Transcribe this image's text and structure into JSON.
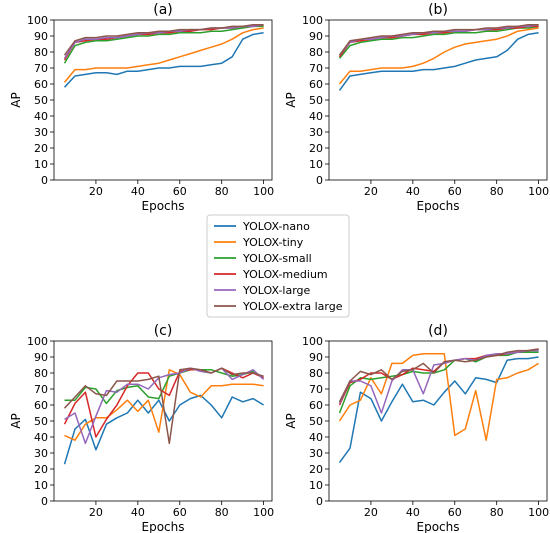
{
  "colors": {
    "YOLOX-nano": "#1f77b4",
    "YOLOX-tiny": "#ff7f0e",
    "YOLOX-small": "#2ca02c",
    "YOLOX-medium": "#d62728",
    "YOLOX-large": "#9467bd",
    "YOLOX-extra large": "#8c564b"
  },
  "legend": {
    "placement": "center",
    "entries": [
      "YOLOX-nano",
      "YOLOX-tiny",
      "YOLOX-small",
      "YOLOX-medium",
      "YOLOX-large",
      "YOLOX-extra large"
    ]
  },
  "chart_data": [
    {
      "type": "line",
      "title": "(a)",
      "xlabel": "Epochs",
      "ylabel": "AP",
      "xlim": [
        0,
        104
      ],
      "ylim": [
        0,
        100
      ],
      "xticks": [
        20,
        40,
        60,
        80,
        100
      ],
      "yticks": [
        0,
        10,
        20,
        30,
        40,
        50,
        60,
        70,
        80,
        90,
        100
      ],
      "x": [
        5,
        10,
        15,
        20,
        25,
        30,
        35,
        40,
        45,
        50,
        55,
        60,
        65,
        70,
        75,
        80,
        85,
        90,
        95,
        100
      ],
      "series": [
        {
          "name": "YOLOX-nano",
          "values": [
            58,
            65,
            66,
            67,
            67,
            66,
            68,
            68,
            69,
            70,
            70,
            71,
            71,
            71,
            72,
            73,
            77,
            88,
            91,
            92
          ]
        },
        {
          "name": "YOLOX-tiny",
          "values": [
            61,
            69,
            69,
            70,
            70,
            70,
            70,
            71,
            72,
            73,
            75,
            77,
            79,
            81,
            83,
            85,
            88,
            92,
            94,
            95
          ]
        },
        {
          "name": "YOLOX-small",
          "values": [
            73,
            84,
            86,
            87,
            87,
            88,
            89,
            90,
            90,
            91,
            91,
            92,
            92,
            92,
            93,
            93,
            94,
            95,
            96,
            96
          ]
        },
        {
          "name": "YOLOX-medium",
          "values": [
            75,
            86,
            87,
            88,
            88,
            89,
            90,
            91,
            91,
            92,
            92,
            93,
            93,
            94,
            94,
            95,
            95,
            96,
            96,
            97
          ]
        },
        {
          "name": "YOLOX-large",
          "values": [
            76,
            86,
            88,
            88,
            89,
            89,
            90,
            91,
            92,
            92,
            93,
            93,
            94,
            94,
            95,
            95,
            95,
            96,
            96,
            97
          ]
        },
        {
          "name": "YOLOX-extra large",
          "values": [
            78,
            87,
            89,
            89,
            90,
            90,
            91,
            92,
            92,
            93,
            93,
            94,
            94,
            94,
            95,
            95,
            96,
            96,
            97,
            97
          ]
        }
      ]
    },
    {
      "type": "line",
      "title": "(b)",
      "xlabel": "Epochs",
      "ylabel": "AP",
      "xlim": [
        0,
        104
      ],
      "ylim": [
        0,
        100
      ],
      "xticks": [
        20,
        40,
        60,
        80,
        100
      ],
      "yticks": [
        0,
        10,
        20,
        30,
        40,
        50,
        60,
        70,
        80,
        90,
        100
      ],
      "x": [
        5,
        10,
        15,
        20,
        25,
        30,
        35,
        40,
        45,
        50,
        55,
        60,
        65,
        70,
        75,
        80,
        85,
        90,
        95,
        100
      ],
      "series": [
        {
          "name": "YOLOX-nano",
          "values": [
            56,
            65,
            66,
            67,
            68,
            68,
            68,
            68,
            69,
            69,
            70,
            71,
            73,
            75,
            76,
            77,
            81,
            88,
            91,
            92
          ]
        },
        {
          "name": "YOLOX-tiny",
          "values": [
            60,
            68,
            68,
            69,
            70,
            70,
            70,
            71,
            73,
            76,
            80,
            83,
            85,
            86,
            87,
            88,
            90,
            93,
            94,
            95
          ]
        },
        {
          "name": "YOLOX-small",
          "values": [
            76,
            84,
            86,
            87,
            88,
            88,
            89,
            89,
            90,
            91,
            91,
            92,
            92,
            92,
            93,
            93,
            94,
            95,
            95,
            96
          ]
        },
        {
          "name": "YOLOX-medium",
          "values": [
            77,
            86,
            87,
            88,
            89,
            89,
            90,
            91,
            91,
            92,
            92,
            93,
            93,
            94,
            94,
            94,
            95,
            95,
            96,
            96
          ]
        },
        {
          "name": "YOLOX-large",
          "values": [
            78,
            86,
            88,
            88,
            89,
            90,
            90,
            91,
            92,
            92,
            93,
            93,
            93,
            94,
            94,
            95,
            95,
            96,
            96,
            97
          ]
        },
        {
          "name": "YOLOX-extra large",
          "values": [
            78,
            87,
            88,
            89,
            90,
            90,
            91,
            92,
            92,
            93,
            93,
            94,
            94,
            94,
            95,
            95,
            96,
            96,
            97,
            97
          ]
        }
      ]
    },
    {
      "type": "line",
      "title": "(c)",
      "xlabel": "Epochs",
      "ylabel": "AP",
      "xlim": [
        0,
        104
      ],
      "ylim": [
        0,
        100
      ],
      "xticks": [
        20,
        40,
        60,
        80,
        100
      ],
      "yticks": [
        0,
        10,
        20,
        30,
        40,
        50,
        60,
        70,
        80,
        90,
        100
      ],
      "x": [
        5,
        10,
        15,
        20,
        25,
        30,
        35,
        40,
        45,
        50,
        55,
        60,
        65,
        70,
        75,
        80,
        85,
        90,
        95,
        100
      ],
      "series": [
        {
          "name": "YOLOX-nano",
          "values": [
            23,
            45,
            51,
            32,
            48,
            52,
            55,
            63,
            55,
            63,
            50,
            60,
            64,
            66,
            60,
            52,
            65,
            62,
            64,
            60
          ]
        },
        {
          "name": "YOLOX-tiny",
          "values": [
            41,
            38,
            48,
            52,
            52,
            57,
            63,
            56,
            63,
            43,
            82,
            79,
            68,
            65,
            72,
            72,
            73,
            73,
            73,
            72
          ]
        },
        {
          "name": "YOLOX-small",
          "values": [
            63,
            63,
            71,
            70,
            61,
            69,
            71,
            72,
            65,
            64,
            78,
            80,
            82,
            82,
            82,
            80,
            78,
            79,
            81,
            77
          ]
        },
        {
          "name": "YOLOX-medium",
          "values": [
            48,
            61,
            68,
            40,
            51,
            60,
            72,
            80,
            80,
            70,
            66,
            81,
            82,
            82,
            80,
            83,
            80,
            77,
            80,
            77
          ]
        },
        {
          "name": "YOLOX-large",
          "values": [
            51,
            55,
            36,
            53,
            69,
            68,
            73,
            73,
            70,
            77,
            79,
            80,
            83,
            81,
            80,
            83,
            76,
            79,
            82,
            76
          ]
        },
        {
          "name": "YOLOX-extra large",
          "values": [
            58,
            65,
            72,
            67,
            66,
            75,
            75,
            75,
            76,
            78,
            36,
            82,
            83,
            82,
            80,
            83,
            79,
            80,
            80,
            78
          ]
        }
      ]
    },
    {
      "type": "line",
      "title": "(d)",
      "xlabel": "Epochs",
      "ylabel": "AP",
      "xlim": [
        0,
        104
      ],
      "ylim": [
        0,
        100
      ],
      "xticks": [
        20,
        40,
        60,
        80,
        100
      ],
      "yticks": [
        0,
        10,
        20,
        30,
        40,
        50,
        60,
        70,
        80,
        90,
        100
      ],
      "x": [
        5,
        10,
        15,
        20,
        25,
        30,
        35,
        40,
        45,
        50,
        55,
        60,
        65,
        70,
        75,
        80,
        85,
        90,
        95,
        100
      ],
      "series": [
        {
          "name": "YOLOX-nano",
          "values": [
            24,
            33,
            68,
            64,
            50,
            62,
            73,
            62,
            63,
            60,
            68,
            75,
            67,
            77,
            76,
            74,
            88,
            89,
            89,
            90
          ]
        },
        {
          "name": "YOLOX-tiny",
          "values": [
            50,
            60,
            63,
            77,
            67,
            86,
            86,
            91,
            92,
            92,
            92,
            41,
            45,
            69,
            38,
            76,
            77,
            80,
            82,
            86
          ]
        },
        {
          "name": "YOLOX-small",
          "values": [
            55,
            72,
            77,
            76,
            77,
            78,
            79,
            81,
            80,
            80,
            82,
            88,
            89,
            87,
            90,
            91,
            91,
            93,
            93,
            93
          ]
        },
        {
          "name": "YOLOX-medium",
          "values": [
            60,
            74,
            76,
            80,
            80,
            76,
            79,
            83,
            82,
            81,
            87,
            88,
            89,
            89,
            91,
            91,
            92,
            93,
            94,
            95
          ]
        },
        {
          "name": "YOLOX-large",
          "values": [
            61,
            75,
            75,
            72,
            55,
            75,
            82,
            82,
            67,
            85,
            86,
            88,
            89,
            88,
            91,
            92,
            92,
            93,
            94,
            94
          ]
        },
        {
          "name": "YOLOX-extra large",
          "values": [
            62,
            75,
            81,
            79,
            82,
            76,
            81,
            82,
            86,
            80,
            87,
            88,
            87,
            88,
            90,
            91,
            93,
            94,
            94,
            95
          ]
        }
      ]
    }
  ]
}
